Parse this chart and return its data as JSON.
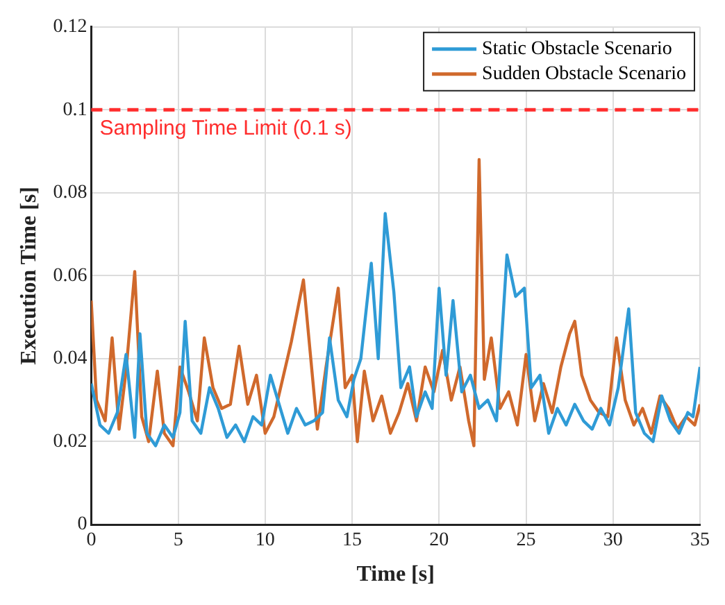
{
  "chart_data": {
    "type": "line",
    "xlabel": "Time [s]",
    "ylabel": "Execution Time [s]",
    "xlim": [
      0,
      35
    ],
    "xticks": [
      0,
      5,
      10,
      15,
      20,
      25,
      30,
      35
    ],
    "ylim": [
      0,
      0.12
    ],
    "yticks": [
      0,
      0.02,
      0.04,
      0.06,
      0.08,
      0.1,
      0.12
    ],
    "grid": true,
    "legend": "top right",
    "line_style": "solid",
    "marker": "none",
    "ref_lines": [
      {
        "axis": "y",
        "value": 0.1,
        "label": "Sampling Time Limit (0.1 s)",
        "color": "#ff2d2d",
        "line_style": "dashed"
      }
    ],
    "series": [
      {
        "name": "Static Obstacle Scenario",
        "color": "#2f9bd6",
        "x": [
          0,
          0.5,
          1,
          1.5,
          2,
          2.5,
          2.8,
          3.2,
          3.7,
          4.2,
          4.7,
          5.1,
          5.4,
          5.8,
          6.3,
          6.8,
          7.3,
          7.8,
          8.3,
          8.8,
          9.3,
          9.8,
          10.3,
          10.8,
          11.3,
          11.8,
          12.3,
          12.8,
          13.3,
          13.7,
          14.2,
          14.7,
          15.1,
          15.5,
          16.1,
          16.5,
          16.9,
          17.4,
          17.8,
          18.3,
          18.7,
          19.2,
          19.6,
          20,
          20.4,
          20.8,
          21.3,
          21.8,
          22.3,
          22.8,
          23.3,
          23.9,
          24.4,
          24.9,
          25.3,
          25.8,
          26.3,
          26.8,
          27.3,
          27.8,
          28.3,
          28.8,
          29.3,
          29.8,
          30.3,
          30.9,
          31.3,
          31.8,
          32.3,
          32.8,
          33.3,
          33.8,
          34.3,
          34.6,
          35
        ],
        "values": [
          0.034,
          0.024,
          0.022,
          0.027,
          0.041,
          0.021,
          0.046,
          0.022,
          0.019,
          0.024,
          0.021,
          0.027,
          0.049,
          0.025,
          0.022,
          0.033,
          0.028,
          0.021,
          0.024,
          0.02,
          0.026,
          0.024,
          0.036,
          0.029,
          0.022,
          0.028,
          0.024,
          0.025,
          0.027,
          0.045,
          0.03,
          0.026,
          0.035,
          0.04,
          0.063,
          0.04,
          0.075,
          0.056,
          0.033,
          0.038,
          0.026,
          0.032,
          0.028,
          0.057,
          0.036,
          0.054,
          0.032,
          0.036,
          0.028,
          0.03,
          0.025,
          0.065,
          0.055,
          0.057,
          0.033,
          0.036,
          0.022,
          0.028,
          0.024,
          0.029,
          0.025,
          0.023,
          0.028,
          0.024,
          0.033,
          0.052,
          0.027,
          0.022,
          0.02,
          0.031,
          0.025,
          0.022,
          0.027,
          0.026,
          0.038
        ]
      },
      {
        "name": "Sudden Obstacle Scenario",
        "color": "#d0692c",
        "x": [
          0,
          0.3,
          0.8,
          1.2,
          1.6,
          2,
          2.5,
          2.9,
          3.3,
          3.8,
          4.2,
          4.7,
          5.1,
          5.6,
          6.1,
          6.5,
          7,
          7.5,
          8,
          8.5,
          9,
          9.5,
          10,
          10.5,
          11,
          11.5,
          12.2,
          12.6,
          13,
          13.5,
          14.2,
          14.6,
          15,
          15.3,
          15.7,
          16.2,
          16.7,
          17.2,
          17.7,
          18.2,
          18.7,
          19.2,
          19.7,
          20.2,
          20.7,
          21.2,
          21.7,
          22,
          22.3,
          22.6,
          23,
          23.5,
          24,
          24.5,
          25,
          25.5,
          26,
          26.5,
          27,
          27.5,
          27.8,
          28.2,
          28.7,
          29.2,
          29.7,
          30.2,
          30.7,
          31.2,
          31.7,
          32.2,
          32.7,
          33.2,
          33.7,
          34.2,
          34.7,
          35
        ],
        "values": [
          0.054,
          0.03,
          0.025,
          0.045,
          0.023,
          0.037,
          0.061,
          0.026,
          0.02,
          0.037,
          0.022,
          0.019,
          0.038,
          0.032,
          0.025,
          0.045,
          0.033,
          0.028,
          0.029,
          0.043,
          0.029,
          0.036,
          0.022,
          0.026,
          0.035,
          0.044,
          0.059,
          0.041,
          0.023,
          0.038,
          0.057,
          0.033,
          0.036,
          0.02,
          0.037,
          0.025,
          0.031,
          0.022,
          0.027,
          0.034,
          0.025,
          0.038,
          0.032,
          0.042,
          0.03,
          0.038,
          0.025,
          0.019,
          0.088,
          0.035,
          0.045,
          0.028,
          0.032,
          0.024,
          0.041,
          0.025,
          0.034,
          0.027,
          0.038,
          0.046,
          0.049,
          0.036,
          0.03,
          0.027,
          0.026,
          0.045,
          0.03,
          0.024,
          0.028,
          0.022,
          0.031,
          0.028,
          0.023,
          0.026,
          0.024,
          0.029
        ]
      }
    ]
  }
}
